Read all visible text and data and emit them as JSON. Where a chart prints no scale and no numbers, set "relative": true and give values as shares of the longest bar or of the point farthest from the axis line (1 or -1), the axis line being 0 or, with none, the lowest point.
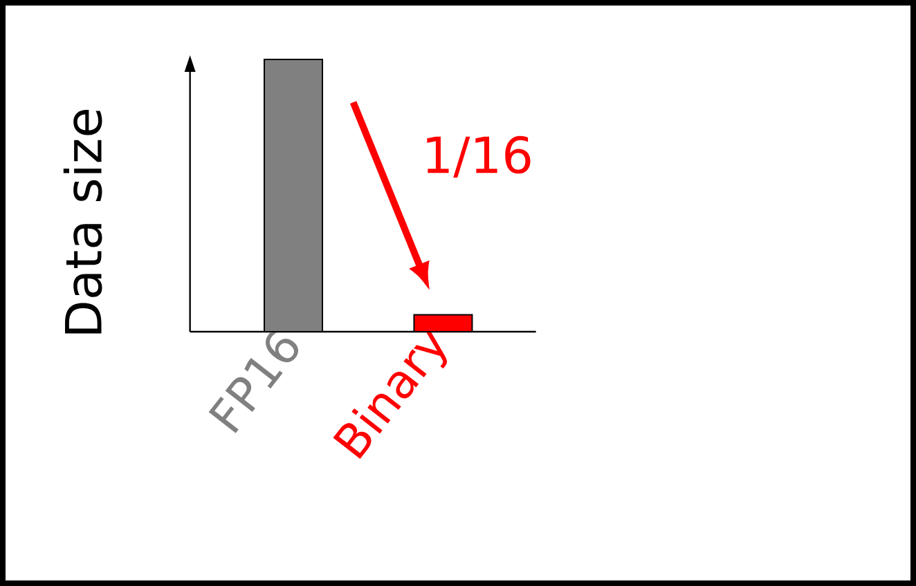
{
  "chart_data": {
    "type": "bar",
    "relative": true,
    "ylabel": "Data size",
    "categories": [
      "FP16",
      "Binary"
    ],
    "values": [
      1,
      0.0625
    ],
    "colors": [
      "#808080",
      "#ff0000"
    ],
    "annotations": [
      {
        "text": "1/16",
        "x": "Binary",
        "y": 0.0625
      }
    ]
  }
}
